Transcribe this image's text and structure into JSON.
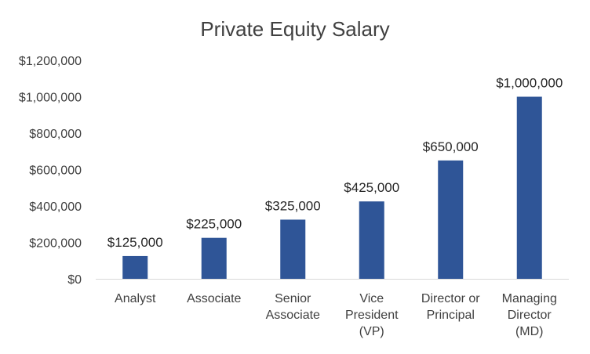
{
  "chart_data": {
    "type": "bar",
    "title": "Private Equity Salary",
    "xlabel": "",
    "ylabel": "",
    "categories": [
      "Analyst",
      "Associate",
      "Senior Associate",
      "Vice President (VP)",
      "Director or Principal",
      "Managing Director (MD)"
    ],
    "category_lines": [
      [
        "Analyst"
      ],
      [
        "Associate"
      ],
      [
        "Senior",
        "Associate"
      ],
      [
        "Vice",
        "President",
        "(VP)"
      ],
      [
        "Director or",
        "Principal"
      ],
      [
        "Managing",
        "Director",
        "(MD)"
      ]
    ],
    "values": [
      125000,
      225000,
      325000,
      425000,
      650000,
      1000000
    ],
    "data_labels": [
      "$125,000",
      "$225,000",
      "$325,000",
      "$425,000",
      "$650,000",
      "$1,000,000"
    ],
    "ylim": [
      0,
      1200000
    ],
    "yticks": [
      0,
      200000,
      400000,
      600000,
      800000,
      1000000,
      1200000
    ],
    "ytick_labels": [
      "$0",
      "$200,000",
      "$400,000",
      "$600,000",
      "$800,000",
      "$1,000,000",
      "$1,200,000"
    ],
    "grid": false,
    "legend": "none",
    "colors": {
      "bar": "#2F5597",
      "axis": "#D9D9D9",
      "text": "#404040"
    }
  }
}
